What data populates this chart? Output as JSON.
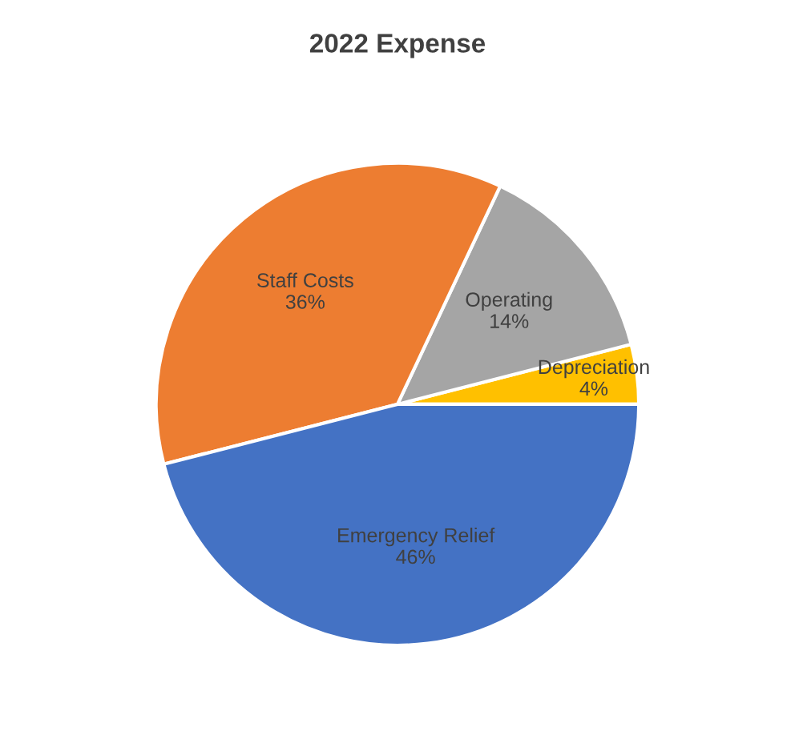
{
  "chart_data": {
    "type": "pie",
    "title": "2022 Expense",
    "categories": [
      "Depreciation",
      "Operating",
      "Staff Costs",
      "Emergency Relief"
    ],
    "values": [
      4,
      14,
      36,
      46
    ],
    "value_labels": [
      "4%",
      "14%",
      "36%",
      "46%"
    ],
    "colors": [
      "#ffc000",
      "#a5a5a5",
      "#ed7d31",
      "#4472c4"
    ],
    "legend": false
  }
}
